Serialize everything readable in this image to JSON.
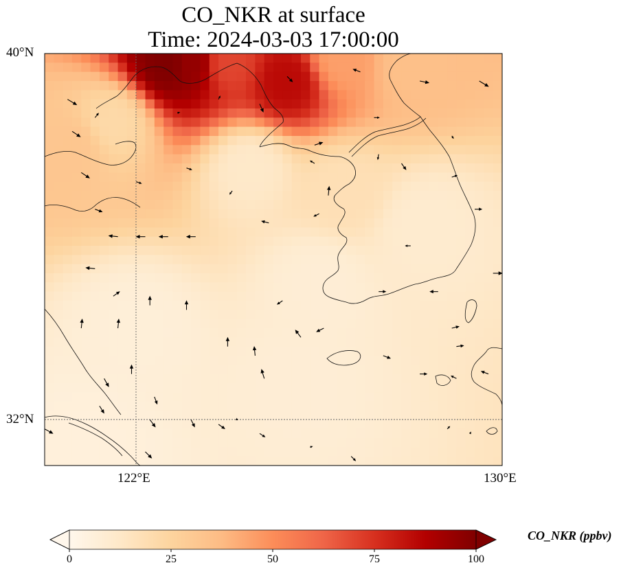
{
  "title": {
    "line1": "CO_NKR at surface",
    "line2": "Time: 2024-03-03 17:00:00"
  },
  "map": {
    "extent": {
      "lon_min": 120,
      "lon_max": 130,
      "lat_min": 31,
      "lat_max": 40
    },
    "lat_ticks": [
      {
        "value": 40,
        "label": "40°N"
      },
      {
        "value": 32,
        "label": "32°N"
      }
    ],
    "lon_ticks": [
      {
        "value": 122,
        "label": "122°E"
      },
      {
        "value": 130,
        "label": "130°E"
      }
    ],
    "gridlines": true,
    "overlays": [
      "coastlines",
      "wind-vectors"
    ]
  },
  "colorbar": {
    "label": "CO_NKR (ppbv)",
    "cmap": "OrRd",
    "vmin": 0,
    "vmax": 100,
    "extend": "both",
    "ticks": [
      "0",
      "25",
      "50",
      "75",
      "100"
    ],
    "colors": [
      "#fff7ec",
      "#fee8c8",
      "#fdd49e",
      "#fdbb84",
      "#fc8d59",
      "#ef6548",
      "#d7301f",
      "#b30000",
      "#7f0000"
    ]
  },
  "chart_data": {
    "type": "heatmap",
    "title": "CO_NKR at surface\nTime: 2024-03-03 17:00:00",
    "variable": "CO_NKR",
    "units": "ppbv",
    "x_range": [
      120,
      130
    ],
    "y_range": [
      31,
      40
    ],
    "value_range": [
      0,
      100
    ],
    "features": [
      {
        "lon": 122.7,
        "lat": 39.8,
        "value": 100
      },
      {
        "lon": 123.2,
        "lat": 39.8,
        "value": 95
      },
      {
        "lon": 124.0,
        "lat": 39.8,
        "value": 70
      },
      {
        "lon": 125.3,
        "lat": 39.4,
        "value": 85
      },
      {
        "lon": 126.5,
        "lat": 39.9,
        "value": 45
      },
      {
        "lon": 128.0,
        "lat": 39.8,
        "value": 35
      },
      {
        "lon": 120.6,
        "lat": 38.0,
        "value": 32
      },
      {
        "lon": 121.5,
        "lat": 38.5,
        "value": 22
      },
      {
        "lon": 124.5,
        "lat": 37.5,
        "value": 12
      },
      {
        "lon": 126.5,
        "lat": 37.0,
        "value": 18
      },
      {
        "lon": 128.3,
        "lat": 36.2,
        "value": 10
      },
      {
        "lon": 126.0,
        "lat": 35.0,
        "value": 8
      },
      {
        "lon": 122.0,
        "lat": 34.0,
        "value": 7
      },
      {
        "lon": 125.5,
        "lat": 32.8,
        "value": 8
      },
      {
        "lon": 121.0,
        "lat": 31.5,
        "value": 6
      }
    ],
    "wind_vectors": [
      {
        "lon": 120.5,
        "lat": 39.0,
        "u": 1,
        "v": -0.6
      },
      {
        "lon": 120.6,
        "lat": 38.3,
        "u": 0.9,
        "v": -0.6
      },
      {
        "lon": 120.8,
        "lat": 37.4,
        "u": 0.9,
        "v": -0.6
      },
      {
        "lon": 121.1,
        "lat": 36.6,
        "u": 0.8,
        "v": -0.3
      },
      {
        "lon": 121.6,
        "lat": 36.0,
        "u": -1,
        "v": 0.1
      },
      {
        "lon": 122.2,
        "lat": 36.0,
        "u": -1,
        "v": 0
      },
      {
        "lon": 122.7,
        "lat": 36.0,
        "u": -1,
        "v": 0
      },
      {
        "lon": 123.3,
        "lat": 36.0,
        "u": -1,
        "v": 0
      },
      {
        "lon": 121.1,
        "lat": 35.3,
        "u": -1,
        "v": 0.1
      },
      {
        "lon": 121.5,
        "lat": 34.7,
        "u": 0.7,
        "v": 0.5
      },
      {
        "lon": 120.8,
        "lat": 34.0,
        "u": 0.1,
        "v": 1
      },
      {
        "lon": 121.6,
        "lat": 34.0,
        "u": 0.1,
        "v": 1
      },
      {
        "lon": 122.3,
        "lat": 34.5,
        "u": 0,
        "v": 1
      },
      {
        "lon": 123.1,
        "lat": 34.4,
        "u": 0,
        "v": 1
      },
      {
        "lon": 121.9,
        "lat": 33.0,
        "u": 0,
        "v": 1
      },
      {
        "lon": 122.4,
        "lat": 32.5,
        "u": 0.3,
        "v": -0.8
      },
      {
        "lon": 122.3,
        "lat": 32.0,
        "u": 0.6,
        "v": -0.8
      },
      {
        "lon": 121.3,
        "lat": 32.9,
        "u": 0.5,
        "v": -0.9
      },
      {
        "lon": 121.2,
        "lat": 32.3,
        "u": 0.5,
        "v": -0.8
      },
      {
        "lon": 120.0,
        "lat": 31.8,
        "u": 0.9,
        "v": -0.5
      },
      {
        "lon": 122.2,
        "lat": 31.3,
        "u": 0.7,
        "v": -0.7
      },
      {
        "lon": 123.2,
        "lat": 32.0,
        "u": 0.4,
        "v": -0.8
      },
      {
        "lon": 123.8,
        "lat": 31.9,
        "u": 0.7,
        "v": -0.5
      },
      {
        "lon": 124.7,
        "lat": 31.7,
        "u": 0.6,
        "v": -0.4
      },
      {
        "lon": 124.8,
        "lat": 32.9,
        "u": -0.3,
        "v": 1
      },
      {
        "lon": 124.0,
        "lat": 33.6,
        "u": 0,
        "v": 1
      },
      {
        "lon": 124.6,
        "lat": 33.4,
        "u": -0.1,
        "v": 1
      },
      {
        "lon": 125.6,
        "lat": 33.8,
        "u": -0.6,
        "v": 0.8
      },
      {
        "lon": 125.2,
        "lat": 34.6,
        "u": -0.6,
        "v": -0.4
      },
      {
        "lon": 126.1,
        "lat": 34.0,
        "u": -0.8,
        "v": -0.4
      },
      {
        "lon": 127.3,
        "lat": 34.8,
        "u": 0.8,
        "v": 0
      },
      {
        "lon": 128.6,
        "lat": 34.8,
        "u": -0.9,
        "v": 0
      },
      {
        "lon": 128.9,
        "lat": 34.0,
        "u": 0.8,
        "v": 0.2
      },
      {
        "lon": 129.0,
        "lat": 33.6,
        "u": 0.8,
        "v": 0.1
      },
      {
        "lon": 129.0,
        "lat": 32.9,
        "u": -0.6,
        "v": 0.3
      },
      {
        "lon": 129.7,
        "lat": 33.0,
        "u": -0.8,
        "v": 0.3
      },
      {
        "lon": 128.2,
        "lat": 33.0,
        "u": 0.8,
        "v": 0
      },
      {
        "lon": 127.4,
        "lat": 33.4,
        "u": 0.8,
        "v": -0.3
      },
      {
        "lon": 128.0,
        "lat": 35.8,
        "u": -0.6,
        "v": 0
      },
      {
        "lon": 129.8,
        "lat": 35.2,
        "u": 1,
        "v": 0
      },
      {
        "lon": 129.4,
        "lat": 36.6,
        "u": 0.8,
        "v": 0
      },
      {
        "lon": 128.9,
        "lat": 37.3,
        "u": 0.6,
        "v": 0.2
      },
      {
        "lon": 126.2,
        "lat": 36.9,
        "u": 0.1,
        "v": 1
      },
      {
        "lon": 126.0,
        "lat": 36.5,
        "u": -0.6,
        "v": -0.3
      },
      {
        "lon": 124.9,
        "lat": 36.3,
        "u": -0.8,
        "v": 0.2
      },
      {
        "lon": 124.1,
        "lat": 37.0,
        "u": -0.3,
        "v": -0.4
      },
      {
        "lon": 127.3,
        "lat": 37.8,
        "u": -0.1,
        "v": -0.6
      },
      {
        "lon": 127.8,
        "lat": 37.6,
        "u": 0.5,
        "v": -0.7
      },
      {
        "lon": 128.9,
        "lat": 38.2,
        "u": 0.2,
        "v": -0.3
      },
      {
        "lon": 123.1,
        "lat": 37.5,
        "u": 0.6,
        "v": -0.2
      },
      {
        "lon": 122.9,
        "lat": 38.7,
        "u": 0.3,
        "v": 0.1
      },
      {
        "lon": 123.8,
        "lat": 39.0,
        "u": 0.2,
        "v": 0.4
      },
      {
        "lon": 124.7,
        "lat": 38.9,
        "u": 0.4,
        "v": -0.9
      },
      {
        "lon": 125.3,
        "lat": 39.5,
        "u": 0.6,
        "v": -0.6
      },
      {
        "lon": 126.9,
        "lat": 39.6,
        "u": -0.8,
        "v": 0.3
      },
      {
        "lon": 128.2,
        "lat": 39.4,
        "u": 1,
        "v": -0.2
      },
      {
        "lon": 129.5,
        "lat": 39.4,
        "u": 1,
        "v": -0.6
      },
      {
        "lon": 127.2,
        "lat": 38.6,
        "u": 0.6,
        "v": 0
      },
      {
        "lon": 125.9,
        "lat": 38.0,
        "u": 0.9,
        "v": 0.3
      },
      {
        "lon": 125.9,
        "lat": 37.6,
        "u": -0.5,
        "v": 0.3
      },
      {
        "lon": 121.1,
        "lat": 38.6,
        "u": 0.4,
        "v": 0.5
      },
      {
        "lon": 122.0,
        "lat": 37.2,
        "u": 0.6,
        "v": -0.2
      },
      {
        "lon": 124.2,
        "lat": 32.0,
        "u": 0,
        "v": 0.2
      },
      {
        "lon": 125.8,
        "lat": 31.4,
        "u": 0.3,
        "v": 0.1
      },
      {
        "lon": 126.7,
        "lat": 31.2,
        "u": 0.5,
        "v": -0.5
      },
      {
        "lon": 128.8,
        "lat": 31.8,
        "u": 0.3,
        "v": 0.3
      },
      {
        "lon": 129.3,
        "lat": 31.7,
        "u": 0.1,
        "v": 0.2
      }
    ]
  }
}
